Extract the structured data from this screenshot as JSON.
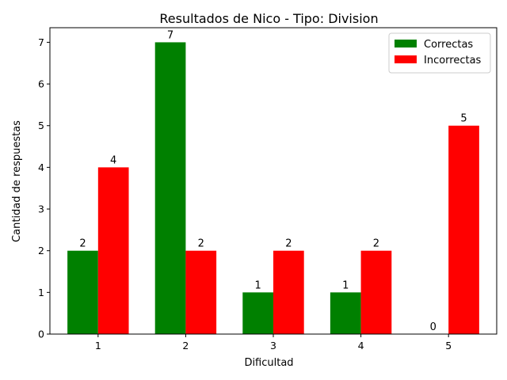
{
  "chart_data": {
    "type": "bar",
    "title": "Resultados de Nico - Tipo: Division",
    "xlabel": "Dificultad",
    "ylabel": "Cantidad de respuestas",
    "categories": [
      "1",
      "2",
      "3",
      "4",
      "5"
    ],
    "series": [
      {
        "name": "Correctas",
        "values": [
          2,
          7,
          1,
          1,
          0
        ],
        "color": "#008000"
      },
      {
        "name": "Incorrectas",
        "values": [
          4,
          2,
          2,
          2,
          5
        ],
        "color": "#ff0000"
      }
    ],
    "ylim": [
      0,
      7.35
    ],
    "yticks": [
      0,
      1,
      2,
      3,
      4,
      5,
      6,
      7
    ],
    "grid": false,
    "legend_position": "top-right"
  }
}
